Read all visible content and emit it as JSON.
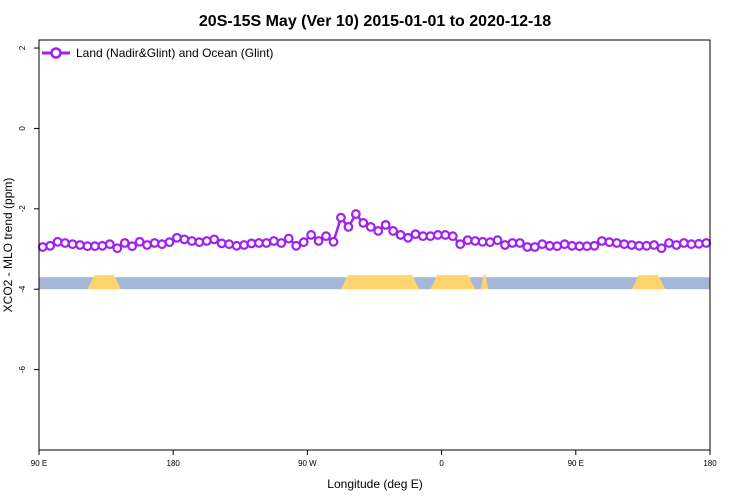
{
  "chart_data": {
    "type": "line",
    "title": "20S-15S May (Ver 10)   2015-01-01 to 2020-12-18",
    "xlabel": "Longitude (deg E)",
    "ylabel": "XCO2 - MLO trend (ppm)",
    "xlim": [
      90,
      450
    ],
    "ylim": [
      -8,
      2.2
    ],
    "x_tick_values": [
      90,
      162,
      234,
      306,
      378,
      450
    ],
    "x_tick_labels": [
      "90 E",
      "180",
      "90 W",
      "0",
      "90 E",
      "180"
    ],
    "y_ticks": [
      -6,
      -4,
      -2,
      0,
      2
    ],
    "legend_position": "top-left",
    "grid": false,
    "series": [
      {
        "name": "Land (Nadir&Glint) and Ocean (Glint)",
        "color": "#a020f0",
        "marker": "open-circle",
        "x": [
          92,
          96,
          100,
          104,
          108,
          112,
          116,
          120,
          124,
          128,
          132,
          136,
          140,
          144,
          148,
          152,
          156,
          160,
          164,
          168,
          172,
          176,
          180,
          184,
          188,
          192,
          196,
          200,
          204,
          208,
          212,
          216,
          220,
          224,
          228,
          232,
          236,
          240,
          244,
          248,
          252,
          256,
          260,
          264,
          268,
          272,
          276,
          280,
          284,
          288,
          292,
          296,
          300,
          304,
          308,
          312,
          316,
          320,
          324,
          328,
          332,
          336,
          340,
          344,
          348,
          352,
          356,
          360,
          364,
          368,
          372,
          376,
          380,
          384,
          388,
          392,
          396,
          400,
          404,
          408,
          412,
          416,
          420,
          424,
          428,
          432,
          436,
          440,
          444,
          448
        ],
        "y": [
          -2.95,
          -2.92,
          -2.82,
          -2.85,
          -2.88,
          -2.9,
          -2.93,
          -2.93,
          -2.92,
          -2.88,
          -2.98,
          -2.85,
          -2.93,
          -2.82,
          -2.9,
          -2.85,
          -2.88,
          -2.83,
          -2.72,
          -2.76,
          -2.8,
          -2.83,
          -2.8,
          -2.76,
          -2.86,
          -2.88,
          -2.92,
          -2.9,
          -2.86,
          -2.85,
          -2.85,
          -2.8,
          -2.85,
          -2.74,
          -2.92,
          -2.83,
          -2.65,
          -2.8,
          -2.68,
          -2.82,
          -2.22,
          -2.45,
          -2.13,
          -2.35,
          -2.45,
          -2.55,
          -2.4,
          -2.55,
          -2.65,
          -2.72,
          -2.63,
          -2.68,
          -2.68,
          -2.65,
          -2.65,
          -2.68,
          -2.88,
          -2.78,
          -2.8,
          -2.82,
          -2.83,
          -2.78,
          -2.9,
          -2.85,
          -2.85,
          -2.95,
          -2.95,
          -2.88,
          -2.92,
          -2.93,
          -2.88,
          -2.92,
          -2.93,
          -2.93,
          -2.92,
          -2.8,
          -2.83,
          -2.85,
          -2.88,
          -2.9,
          -2.92,
          -2.92,
          -2.9,
          -2.98,
          -2.85,
          -2.9,
          -2.85,
          -2.88,
          -2.87,
          -2.85
        ]
      }
    ],
    "surface_band": {
      "y": -3.85,
      "ocean_color": "#a5b7d8",
      "land_color": "#ffd36e",
      "land_segments": [
        [
          116,
          134
        ],
        [
          252,
          294
        ],
        [
          300,
          324
        ],
        [
          327,
          331
        ],
        [
          408,
          426
        ]
      ]
    }
  }
}
